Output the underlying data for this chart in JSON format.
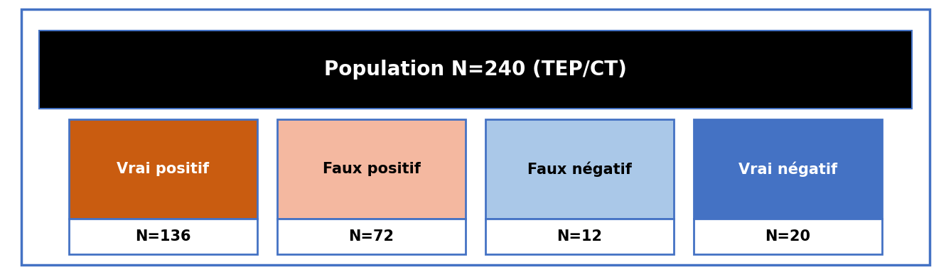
{
  "title": "Population N=240 (TEP/CT)",
  "title_bg": "#000000",
  "title_text_color": "#ffffff",
  "outer_border_color": "#4472c4",
  "outer_bg": "#ffffff",
  "fig_bg": "#ffffff",
  "boxes": [
    {
      "label": "Vrai positif",
      "value": "N=136",
      "top_color": "#c95c10",
      "bottom_color": "#ffffff",
      "border_color": "#4472c4",
      "label_color": "#ffffff",
      "value_color": "#000000"
    },
    {
      "label": "Faux positif",
      "value": "N=72",
      "top_color": "#f4b8a0",
      "bottom_color": "#ffffff",
      "border_color": "#4472c4",
      "label_color": "#000000",
      "value_color": "#000000"
    },
    {
      "label": "Faux négatif",
      "value": "N=12",
      "top_color": "#aac8e8",
      "bottom_color": "#ffffff",
      "border_color": "#4472c4",
      "label_color": "#000000",
      "value_color": "#000000"
    },
    {
      "label": "Vrai négatif",
      "value": "N=20",
      "top_color": "#4472c4",
      "bottom_color": "#ffffff",
      "border_color": "#4472c4",
      "label_color": "#ffffff",
      "value_color": "#000000"
    }
  ],
  "figsize": [
    13.38,
    3.83
  ],
  "dpi": 100
}
